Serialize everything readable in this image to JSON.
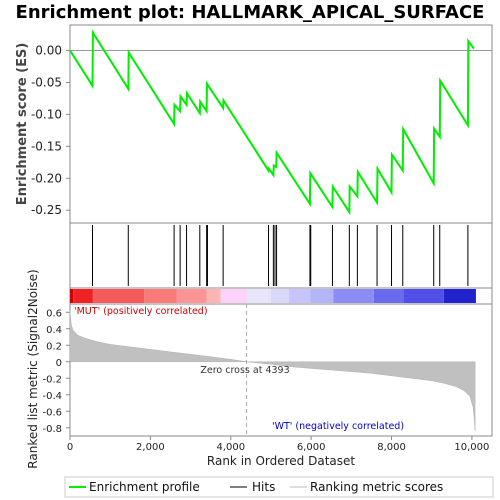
{
  "chart_data": {
    "type": "line",
    "title": "Enrichment plot: HALLMARK_APICAL_SURFACE",
    "es_panel": {
      "ylabel": "Enrichment score (ES)",
      "ylim": [
        -0.27,
        0.04
      ],
      "yticks": [
        0.0,
        -0.05,
        -0.1,
        -0.15,
        -0.2,
        -0.25
      ],
      "ytick_labels": [
        "0.00",
        "-0.05",
        "-0.10",
        "-0.15",
        "-0.20",
        "-0.25"
      ],
      "series": [
        {
          "name": "Enrichment profile",
          "color": "#00ee00",
          "x": [
            0,
            560,
            570,
            1450,
            1460,
            2590,
            2600,
            2740,
            2750,
            2900,
            2910,
            3230,
            3240,
            3400,
            3410,
            3810,
            3820,
            4940,
            4950,
            5060,
            5070,
            5130,
            5140,
            5970,
            5980,
            6530,
            6540,
            6950,
            6960,
            7150,
            7160,
            7640,
            7650,
            8000,
            8010,
            8280,
            8290,
            9050,
            9060,
            9200,
            9210,
            9900,
            9910,
            10050
          ],
          "y": [
            0.0,
            -0.055,
            0.028,
            -0.06,
            -0.003,
            -0.115,
            -0.085,
            -0.095,
            -0.072,
            -0.085,
            -0.067,
            -0.098,
            -0.08,
            -0.095,
            -0.052,
            -0.09,
            -0.078,
            -0.188,
            -0.185,
            -0.195,
            -0.18,
            -0.182,
            -0.16,
            -0.24,
            -0.192,
            -0.245,
            -0.213,
            -0.253,
            -0.213,
            -0.228,
            -0.19,
            -0.238,
            -0.185,
            -0.222,
            -0.163,
            -0.188,
            -0.123,
            -0.208,
            -0.122,
            -0.135,
            -0.047,
            -0.117,
            0.015,
            0.003
          ]
        }
      ]
    },
    "hits": [
      560,
      1450,
      2590,
      2740,
      2900,
      3230,
      3400,
      3420,
      3810,
      4940,
      5060,
      5100,
      5140,
      5970,
      5990,
      6530,
      6950,
      7150,
      7640,
      8000,
      8280,
      9050,
      9200,
      9900
    ],
    "ranked_metric": {
      "ylabel": "Ranked list metric (Signal2Noise)",
      "xlabel": "Rank in Ordered Dataset",
      "ylim": [
        -0.9,
        0.7
      ],
      "yticks": [
        0.6,
        0.4,
        0.2,
        0.0,
        -0.2,
        -0.4,
        -0.6,
        -0.8
      ],
      "ytick_labels": [
        "0.6",
        "0.4",
        "0.2",
        "0",
        "-0.2",
        "-0.4",
        "-0.6",
        "-0.8"
      ],
      "xlim": [
        0,
        10500
      ],
      "xticks": [
        0,
        2000,
        4000,
        6000,
        8000,
        10000
      ],
      "xtick_labels": [
        "0",
        "2,000",
        "4,000",
        "6,000",
        "8,000",
        "10,000"
      ],
      "profile_x": [
        0,
        30,
        80,
        200,
        400,
        700,
        1000,
        1500,
        2000,
        2500,
        3000,
        3500,
        4000,
        4393,
        5000,
        5500,
        6000,
        6500,
        7000,
        7500,
        8000,
        8500,
        9000,
        9300,
        9600,
        9800,
        9950,
        10030,
        10060,
        10080
      ],
      "profile_y": [
        0.62,
        0.45,
        0.38,
        0.32,
        0.28,
        0.24,
        0.21,
        0.18,
        0.15,
        0.12,
        0.09,
        0.06,
        0.03,
        0.0,
        -0.03,
        -0.06,
        -0.08,
        -0.1,
        -0.12,
        -0.14,
        -0.17,
        -0.2,
        -0.23,
        -0.26,
        -0.3,
        -0.35,
        -0.42,
        -0.55,
        -0.7,
        -0.84
      ],
      "zero_cross": 4393,
      "zero_cross_label": "Zero cross at 4393",
      "pos_label": "'MUT' (positively correlated)",
      "neg_label": "'WT' (negatively correlated)",
      "pos_color": "#cc0000",
      "neg_color": "#0000cc"
    },
    "colorbar_segments": [
      {
        "start": 0,
        "end": 80,
        "color": "#cc0000"
      },
      {
        "start": 80,
        "end": 570,
        "color": "#ee2222"
      },
      {
        "start": 570,
        "end": 1850,
        "color": "#f55a5a"
      },
      {
        "start": 1850,
        "end": 2650,
        "color": "#fa7a7a"
      },
      {
        "start": 2650,
        "end": 3400,
        "color": "#fb9595"
      },
      {
        "start": 3400,
        "end": 3750,
        "color": "#fcb4b4"
      },
      {
        "start": 3750,
        "end": 4393,
        "color": "#fcd2fa"
      },
      {
        "start": 4393,
        "end": 5000,
        "color": "#e8e4fc"
      },
      {
        "start": 5000,
        "end": 5450,
        "color": "#d8d8fb"
      },
      {
        "start": 5450,
        "end": 5980,
        "color": "#c6c4fa"
      },
      {
        "start": 5980,
        "end": 6550,
        "color": "#b4b4f8"
      },
      {
        "start": 6550,
        "end": 7560,
        "color": "#8c8cf4"
      },
      {
        "start": 7560,
        "end": 8300,
        "color": "#6a6aee"
      },
      {
        "start": 8300,
        "end": 9300,
        "color": "#5050e8"
      },
      {
        "start": 9300,
        "end": 10100,
        "color": "#2222cc"
      }
    ],
    "legend": [
      {
        "label": "Enrichment profile",
        "color": "#00ee00"
      },
      {
        "label": "Hits",
        "color": "#000000"
      },
      {
        "label": "Ranking metric scores",
        "color": "#bbbbbb"
      }
    ],
    "axis_color": "#888888",
    "grid": false,
    "legend_position": "bottom"
  }
}
